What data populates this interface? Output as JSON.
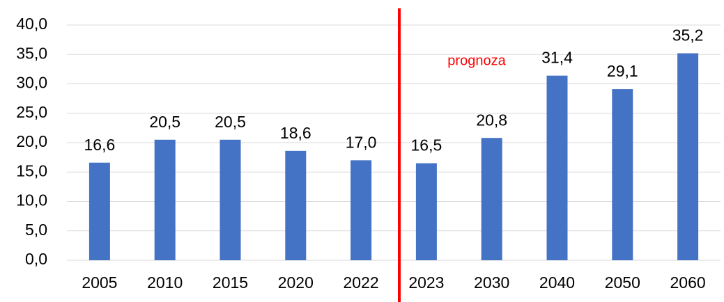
{
  "chart_data": {
    "type": "bar",
    "categories": [
      "2005",
      "2010",
      "2015",
      "2020",
      "2022",
      "2023",
      "2030",
      "2040",
      "2050",
      "2060"
    ],
    "values": [
      16.6,
      20.5,
      20.5,
      18.6,
      17.0,
      16.5,
      20.8,
      31.4,
      29.1,
      35.2
    ],
    "value_labels": [
      "16,6",
      "20,5",
      "20,5",
      "18,6",
      "17,0",
      "16,5",
      "20,8",
      "31,4",
      "29,1",
      "35,2"
    ],
    "color": "#4472c4",
    "annotation": "prognoza",
    "ylim": [
      0,
      40
    ],
    "yticks": [
      {
        "value": 0,
        "label": "0,0"
      },
      {
        "value": 5,
        "label": "5,0"
      },
      {
        "value": 10,
        "label": "10,0"
      },
      {
        "value": 15,
        "label": "15,0"
      },
      {
        "value": 20,
        "label": "20,0"
      },
      {
        "value": 25,
        "label": "25,0"
      },
      {
        "value": 30,
        "label": "30,0"
      },
      {
        "value": 35,
        "label": "35,0"
      },
      {
        "value": 40,
        "label": "40,0"
      }
    ],
    "grid": true
  }
}
